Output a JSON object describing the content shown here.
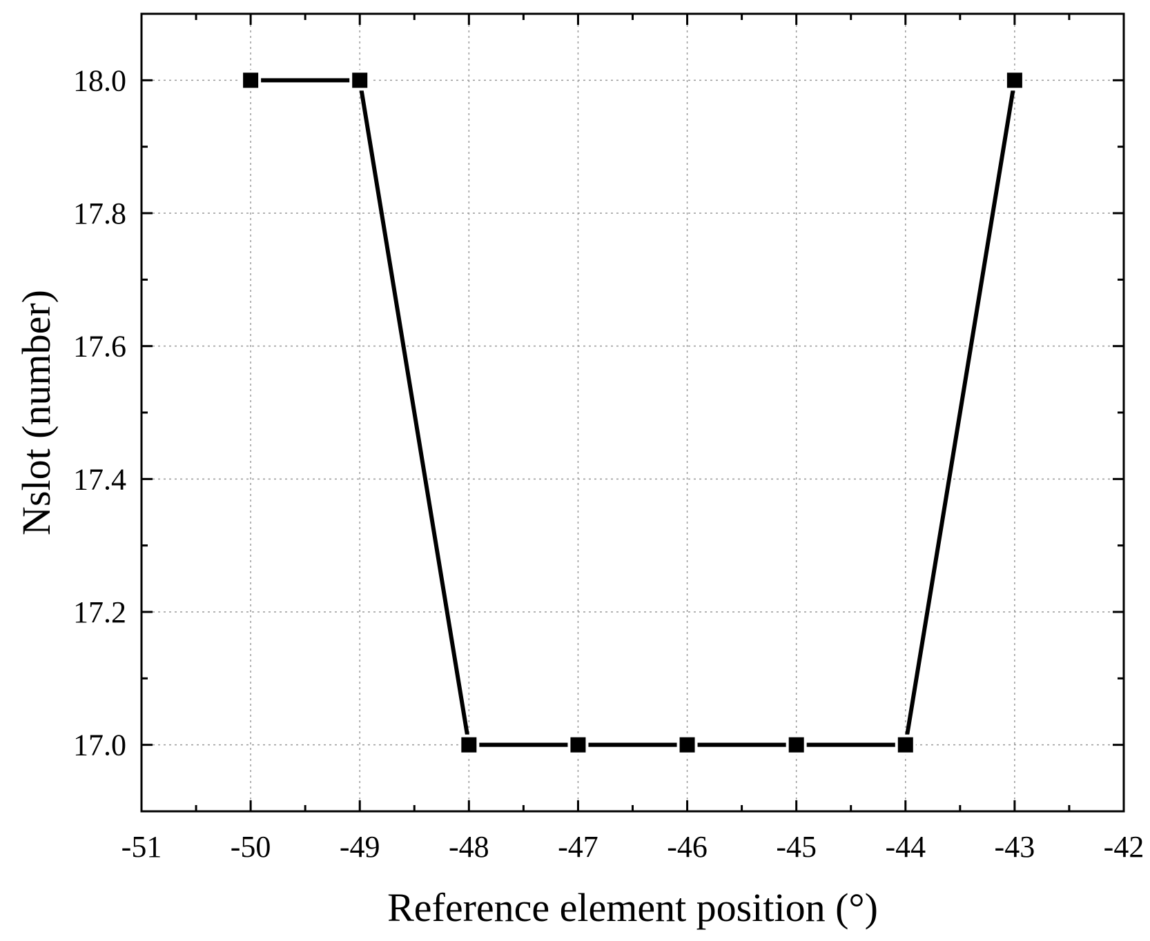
{
  "chart_data": {
    "type": "line",
    "xlabel": "Reference element position (°)",
    "ylabel": "Nslot (number)",
    "xlim": [
      -51,
      -42
    ],
    "ylim": [
      16.9,
      18.1
    ],
    "x_ticks": [
      -51,
      -50,
      -49,
      -48,
      -47,
      -46,
      -45,
      -44,
      -43,
      -42
    ],
    "y_ticks": [
      17.0,
      17.2,
      17.4,
      17.6,
      17.8,
      18.0
    ],
    "grid": true,
    "marker": "square",
    "line_color": "#000000",
    "series": [
      {
        "x": [
          -50,
          -49,
          -48,
          -47,
          -46,
          -45,
          -44,
          -43
        ],
        "y": [
          18.0,
          18.0,
          17.0,
          17.0,
          17.0,
          17.0,
          17.0,
          18.0
        ]
      }
    ]
  }
}
